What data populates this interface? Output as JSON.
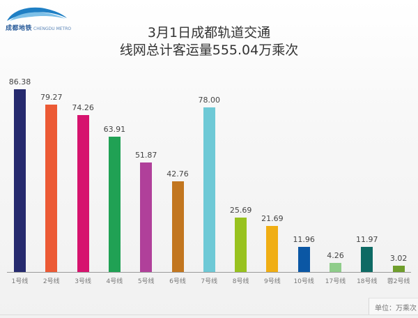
{
  "logo": {
    "text_cn": "成都地铁",
    "text_en": "CHENGDU METRO"
  },
  "header": {
    "title_line1": "3月1日成都轨道交通",
    "title_line2": "线网总计客运量555.04万乘次"
  },
  "unit_label": "单位：万乘次",
  "chart_data": {
    "type": "bar",
    "title": "3月1日成都轨道交通线网总计客运量555.04万乘次",
    "xlabel": "",
    "ylabel": "",
    "unit": "万乘次",
    "ylim": [
      0,
      90
    ],
    "grid": false,
    "legend": "none",
    "categories": [
      "1号线",
      "2号线",
      "3号线",
      "4号线",
      "5号线",
      "6号线",
      "7号线",
      "8号线",
      "9号线",
      "10号线",
      "17号线",
      "18号线",
      "蓉2号线"
    ],
    "values": [
      86.38,
      79.27,
      74.26,
      63.91,
      51.87,
      42.76,
      78.0,
      25.69,
      21.69,
      11.96,
      4.26,
      11.97,
      3.02
    ],
    "value_labels": [
      "86.38",
      "79.27",
      "74.26",
      "63.91",
      "51.87",
      "42.76",
      "78.00",
      "25.69",
      "21.69",
      "11.96",
      "4.26",
      "11.97",
      "3.02"
    ],
    "colors": [
      "#262a6e",
      "#ec5a35",
      "#d6136e",
      "#20a154",
      "#b0409a",
      "#c2761f",
      "#6ec9d6",
      "#98c21f",
      "#f0ae14",
      "#0b57a4",
      "#8fcd8a",
      "#0e6a64",
      "#6f9e2c"
    ]
  }
}
